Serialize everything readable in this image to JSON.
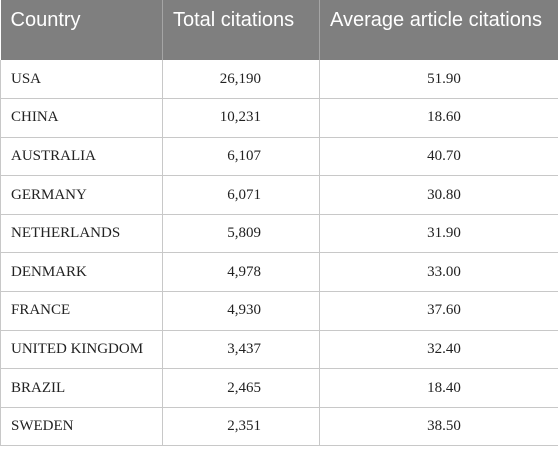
{
  "table": {
    "headers": [
      "Country",
      "Total citations",
      "Average article citations"
    ],
    "rows": [
      {
        "country": "USA",
        "total": "26,190",
        "avg": "51.90"
      },
      {
        "country": "CHINA",
        "total": "10,231",
        "avg": "18.60"
      },
      {
        "country": "AUSTRALIA",
        "total": "6,107",
        "avg": "40.70"
      },
      {
        "country": "GERMANY",
        "total": "6,071",
        "avg": "30.80"
      },
      {
        "country": "NETHERLANDS",
        "total": "5,809",
        "avg": "31.90"
      },
      {
        "country": "DENMARK",
        "total": "4,978",
        "avg": "33.00"
      },
      {
        "country": "FRANCE",
        "total": "4,930",
        "avg": "37.60"
      },
      {
        "country": "UNITED KINGDOM",
        "total": "3,437",
        "avg": "32.40"
      },
      {
        "country": "BRAZIL",
        "total": "2,465",
        "avg": "18.40"
      },
      {
        "country": "SWEDEN",
        "total": "2,351",
        "avg": "38.50"
      }
    ]
  }
}
